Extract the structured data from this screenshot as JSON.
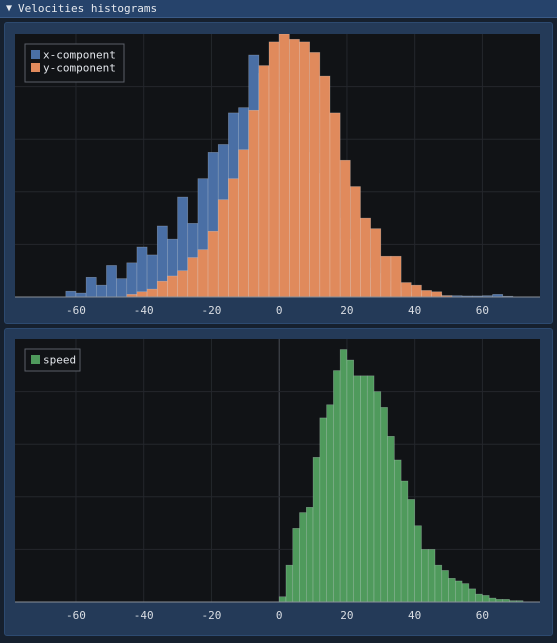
{
  "window": {
    "title": "Velocities histograms"
  },
  "colors": {
    "x": "#4a6fa5",
    "y": "#e08a5c",
    "speed": "#4f9a5c"
  },
  "chart_data": [
    {
      "type": "bar",
      "xlim": [
        -78,
        77
      ],
      "ylim": [
        0,
        1
      ],
      "grid": true,
      "legend_placement": "top-left",
      "xticks": [
        -60,
        -40,
        -20,
        0,
        20,
        40,
        60
      ],
      "bin_width": 3,
      "series": [
        {
          "name": "x-component",
          "x": [
            -63,
            -60,
            -57,
            -54,
            -51,
            -48,
            -45,
            -42,
            -39,
            -36,
            -33,
            -30,
            -27,
            -24,
            -21,
            -18,
            -15,
            -12,
            -9,
            -6,
            -3,
            0,
            3,
            6,
            9,
            12,
            15,
            18,
            21,
            24,
            27,
            30,
            33,
            36,
            39,
            42,
            45,
            48,
            51,
            54,
            57,
            60,
            63,
            66
          ],
          "values": [
            0.022,
            0.015,
            0.075,
            0.045,
            0.12,
            0.07,
            0.13,
            0.19,
            0.16,
            0.27,
            0.22,
            0.38,
            0.28,
            0.45,
            0.55,
            0.58,
            0.7,
            0.72,
            0.92,
            0.85,
            0.8,
            0.7,
            0.64,
            0.55,
            0.47,
            0.37,
            0.3,
            0.22,
            0.16,
            0.11,
            0.09,
            0.06,
            0.035,
            0.02,
            0.012,
            0.01,
            0.01,
            0.005,
            0.005,
            0.004,
            0.004,
            0.005,
            0.01,
            0.003
          ]
        },
        {
          "name": "y-component",
          "x": [
            -45,
            -42,
            -39,
            -36,
            -33,
            -30,
            -27,
            -24,
            -21,
            -18,
            -15,
            -12,
            -9,
            -6,
            -3,
            0,
            3,
            6,
            9,
            12,
            15,
            18,
            21,
            24,
            27,
            30,
            33,
            36,
            39,
            42,
            45,
            48
          ],
          "values": [
            0.01,
            0.02,
            0.03,
            0.06,
            0.08,
            0.1,
            0.15,
            0.18,
            0.25,
            0.37,
            0.45,
            0.56,
            0.71,
            0.88,
            0.97,
            1.0,
            0.98,
            0.97,
            0.93,
            0.84,
            0.7,
            0.52,
            0.42,
            0.3,
            0.26,
            0.155,
            0.155,
            0.055,
            0.045,
            0.025,
            0.02,
            0.005
          ]
        }
      ]
    },
    {
      "type": "bar",
      "xlim": [
        -78,
        77
      ],
      "ylim": [
        0,
        1
      ],
      "grid": true,
      "legend_placement": "top-left",
      "xticks": [
        -60,
        -40,
        -20,
        0,
        20,
        40,
        60
      ],
      "bin_width": 2,
      "series": [
        {
          "name": "speed",
          "x": [
            0,
            2,
            4,
            6,
            8,
            10,
            12,
            14,
            16,
            18,
            20,
            22,
            24,
            26,
            28,
            30,
            32,
            34,
            36,
            38,
            40,
            42,
            44,
            46,
            48,
            50,
            52,
            54,
            56,
            58,
            60,
            62,
            64,
            66,
            68,
            70
          ],
          "values": [
            0.02,
            0.14,
            0.28,
            0.34,
            0.36,
            0.55,
            0.7,
            0.75,
            0.88,
            0.96,
            0.92,
            0.86,
            0.86,
            0.86,
            0.8,
            0.74,
            0.63,
            0.54,
            0.46,
            0.39,
            0.29,
            0.2,
            0.2,
            0.14,
            0.12,
            0.09,
            0.08,
            0.07,
            0.05,
            0.03,
            0.025,
            0.015,
            0.01,
            0.01,
            0.005,
            0.005
          ]
        }
      ]
    }
  ]
}
